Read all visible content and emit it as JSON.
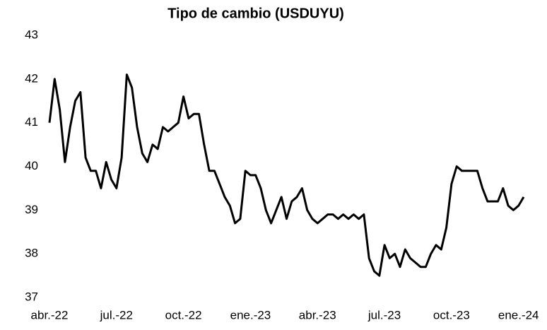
{
  "chart_data": {
    "type": "line",
    "title": "Tipo de cambio (USDUYU)",
    "x": [
      "abr.-22",
      null,
      null,
      null,
      null,
      null,
      null,
      null,
      null,
      null,
      null,
      null,
      null,
      "jul.-22",
      null,
      null,
      null,
      null,
      null,
      null,
      null,
      null,
      null,
      null,
      null,
      null,
      "oct.-22",
      null,
      null,
      null,
      null,
      null,
      null,
      null,
      null,
      null,
      null,
      null,
      null,
      "ene.-23",
      null,
      null,
      null,
      null,
      null,
      null,
      null,
      null,
      null,
      null,
      null,
      null,
      "abr.-23",
      null,
      null,
      null,
      null,
      null,
      null,
      null,
      null,
      null,
      null,
      null,
      null,
      "jul.-23",
      null,
      null,
      null,
      null,
      null,
      null,
      null,
      null,
      null,
      null,
      null,
      null,
      "oct.-23",
      null,
      null,
      null,
      null,
      null,
      null,
      null,
      null,
      null,
      null,
      null,
      null,
      "ene.-24",
      null
    ],
    "values": [
      41.0,
      42.0,
      41.3,
      40.1,
      40.9,
      41.5,
      41.7,
      40.2,
      39.9,
      39.9,
      39.5,
      40.1,
      39.7,
      39.5,
      40.2,
      42.1,
      41.8,
      40.9,
      40.3,
      40.1,
      40.5,
      40.4,
      40.9,
      40.8,
      40.9,
      41.0,
      41.6,
      41.1,
      41.2,
      41.2,
      40.5,
      39.9,
      39.9,
      39.6,
      39.3,
      39.1,
      38.7,
      38.8,
      39.9,
      39.8,
      39.8,
      39.5,
      39.0,
      38.7,
      39.0,
      39.3,
      38.8,
      39.2,
      39.3,
      39.5,
      39.0,
      38.8,
      38.7,
      38.8,
      38.9,
      38.9,
      38.8,
      38.9,
      38.8,
      38.9,
      38.8,
      38.9,
      37.9,
      37.6,
      37.5,
      38.2,
      37.9,
      38.0,
      37.7,
      38.1,
      37.9,
      37.8,
      37.7,
      37.7,
      38.0,
      38.2,
      38.1,
      38.6,
      39.6,
      40.0,
      39.9,
      39.9,
      39.9,
      39.9,
      39.5,
      39.2,
      39.2,
      39.2,
      39.5,
      39.1,
      39.0,
      39.1,
      39.3
    ],
    "color": "#000000",
    "ylim": [
      37,
      43
    ],
    "yticks": [
      37,
      38,
      39,
      40,
      41,
      42,
      43
    ],
    "grid": false
  }
}
